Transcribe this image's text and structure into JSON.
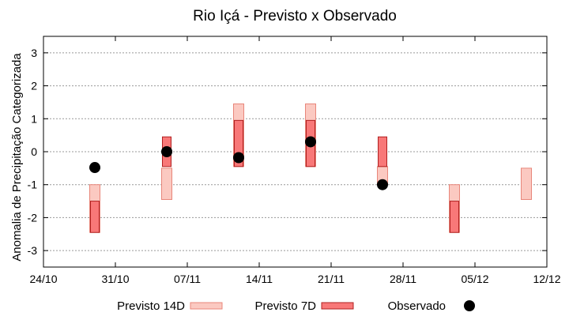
{
  "chart_data": {
    "type": "range-bar-scatter",
    "title": "Rio Içá - Previsto x Observado",
    "xlabel": "",
    "ylabel": "Anomalia de Precipitação Categorizada",
    "ylim": [
      -3.5,
      3.5
    ],
    "yticks": [
      -3,
      -2,
      -1,
      0,
      1,
      2,
      3
    ],
    "xlim": [
      "2023-10-24",
      "2023-12-12"
    ],
    "xticks": [
      "24/10",
      "31/10",
      "07/11",
      "14/11",
      "21/11",
      "28/11",
      "05/12",
      "12/12"
    ],
    "grid": true,
    "legend_position": "bottom",
    "colors": {
      "p14_fill": "#fbc9c1",
      "p14_stroke": "#e8867a",
      "p7_fill": "#f87878",
      "p7_stroke": "#b02020",
      "obs": "#000000",
      "grid": "#999999"
    },
    "series": [
      {
        "name": "Previsto 14D",
        "kind": "range",
        "points": [
          {
            "date": "2023-10-29",
            "low": -2.45,
            "high": -1.0
          },
          {
            "date": "2023-11-05",
            "low": -1.45,
            "high": -0.5
          },
          {
            "date": "2023-11-12",
            "low": -0.45,
            "high": 1.45
          },
          {
            "date": "2023-11-19",
            "low": -0.45,
            "high": 1.45
          },
          {
            "date": "2023-11-26",
            "low": -1.0,
            "high": -0.45
          },
          {
            "date": "2023-12-03",
            "low": -2.45,
            "high": -1.0
          },
          {
            "date": "2023-12-10",
            "low": -1.45,
            "high": -0.5
          }
        ]
      },
      {
        "name": "Previsto 7D",
        "kind": "range",
        "points": [
          {
            "date": "2023-10-29",
            "low": -2.45,
            "high": -1.5
          },
          {
            "date": "2023-11-05",
            "low": -0.45,
            "high": 0.45
          },
          {
            "date": "2023-11-12",
            "low": -0.45,
            "high": 0.95
          },
          {
            "date": "2023-11-19",
            "low": -0.45,
            "high": 0.95
          },
          {
            "date": "2023-11-26",
            "low": -0.45,
            "high": 0.45
          },
          {
            "date": "2023-12-03",
            "low": -2.45,
            "high": -1.5
          }
        ]
      },
      {
        "name": "Observado",
        "kind": "point",
        "points": [
          {
            "date": "2023-10-29",
            "value": -0.48
          },
          {
            "date": "2023-11-05",
            "value": 0.0
          },
          {
            "date": "2023-11-12",
            "value": -0.18
          },
          {
            "date": "2023-11-19",
            "value": 0.3
          },
          {
            "date": "2023-11-26",
            "value": -1.0
          }
        ]
      }
    ]
  }
}
